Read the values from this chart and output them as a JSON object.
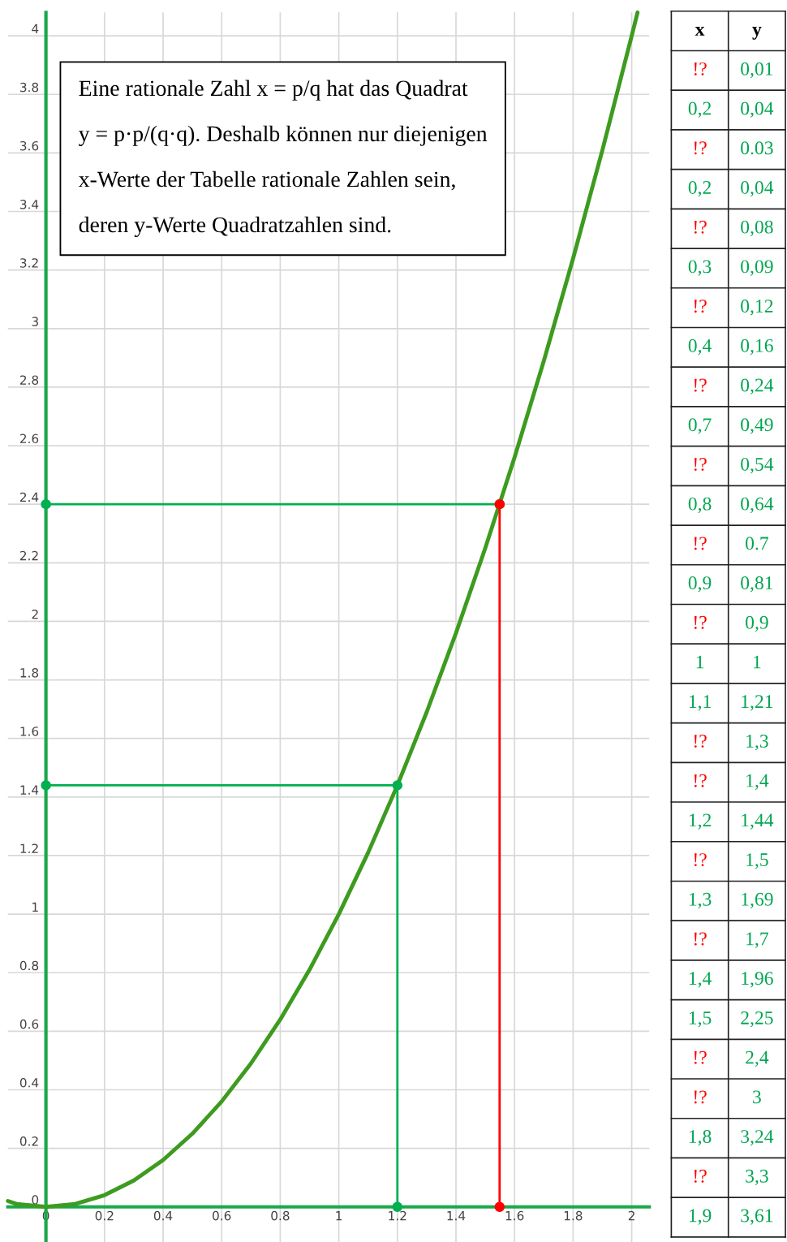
{
  "chart_data": [
    {
      "type": "line",
      "xlim": [
        -0.13,
        2.06
      ],
      "ylim": [
        -0.12,
        4.08
      ],
      "xticks": [
        0,
        0.2,
        0.4,
        0.6,
        0.8,
        1,
        1.2,
        1.4,
        1.6,
        1.8,
        2
      ],
      "yticks": [
        0,
        0.2,
        0.4,
        0.6,
        0.8,
        1,
        1.2,
        1.4,
        1.6,
        1.8,
        2,
        2.2,
        2.4,
        2.6,
        2.8,
        3,
        3.2,
        3.4,
        3.6,
        3.8,
        4
      ],
      "grid": true,
      "legend": false,
      "marker": "none",
      "line_style": "solid",
      "series": [
        {
          "color": "#3d9b1f",
          "x": [
            -0.13,
            -0.1,
            0,
            0.1,
            0.2,
            0.3,
            0.4,
            0.5,
            0.6,
            0.7,
            0.8,
            0.9,
            1,
            1.1,
            1.2,
            1.3,
            1.4,
            1.5,
            1.6,
            1.7,
            1.8,
            1.9,
            2.0,
            2.02
          ],
          "values": [
            0.02,
            0.01,
            0,
            0.01,
            0.04,
            0.09,
            0.16,
            0.25,
            0.36,
            0.49,
            0.64,
            0.81,
            1,
            1.21,
            1.44,
            1.69,
            1.96,
            2.25,
            2.56,
            2.89,
            3.24,
            3.61,
            4.0,
            4.08
          ]
        },
        {
          "color": "#00b050",
          "marker": "circle",
          "x": [
            1.2,
            1.2,
            0
          ],
          "values": [
            0,
            1.44,
            1.44
          ]
        },
        {
          "color": "#00b050",
          "marker": "circle",
          "x": [
            0,
            1.549
          ],
          "values": [
            2.4,
            2.4
          ]
        },
        {
          "color": "#ff0000",
          "marker": "circle",
          "x": [
            1.549,
            1.549
          ],
          "values": [
            2.4,
            0
          ]
        }
      ],
      "annotations": [
        "Eine rationale Zahl x = p/q hat das Quadrat\ny = p·p/(q·q). Deshalb können nur diejenigen\nx-Werte der Tabelle rationale Zahlen sein,\nderen y-Werte Quadratzahlen sind."
      ]
    },
    {
      "type": "other",
      "annotations": [
        "x",
        "y",
        "!?",
        "0,01",
        "0,2",
        "0,04",
        "!?",
        "0.03",
        "0,2",
        "0,04",
        "!?",
        "0,08",
        "0,3",
        "0,09",
        "!?",
        "0,12",
        "0,4",
        "0,16",
        "!?",
        "0,24",
        "0,7",
        "0,49",
        "!?",
        "0,54",
        "0,8",
        "0,64",
        "!?",
        "0.7",
        "0,9",
        "0,81",
        "!?",
        "0,9",
        "1",
        "1",
        "1,1",
        "1,21",
        "!?",
        "1,3",
        "!?",
        "1,4",
        "1,2",
        "1,44",
        "!?",
        "1,5",
        "1,3",
        "1,69",
        "!?",
        "1,7",
        "1,4",
        "1,96",
        "1,5",
        "2,25",
        "!?",
        "2,4",
        "!?",
        "3",
        "1,8",
        "3,24",
        "!?",
        "3,3",
        "1,9",
        "3,61"
      ],
      "colors": [
        "#000000",
        "#000000",
        "#ff0000",
        "#00a651",
        "#00a651",
        "#00a651",
        "#ff0000",
        "#00a651",
        "#00a651",
        "#00a651",
        "#ff0000",
        "#00a651",
        "#00a651",
        "#00a651",
        "#ff0000",
        "#00a651",
        "#00a651",
        "#00a651",
        "#ff0000",
        "#00a651",
        "#00a651",
        "#00a651",
        "#ff0000",
        "#00a651",
        "#00a651",
        "#00a651",
        "#ff0000",
        "#00a651",
        "#00a651",
        "#00a651",
        "#ff0000",
        "#00a651",
        "#00a651",
        "#00a651",
        "#00a651",
        "#00a651",
        "#ff0000",
        "#00a651",
        "#ff0000",
        "#00a651",
        "#00a651",
        "#00a651",
        "#ff0000",
        "#00a651",
        "#00a651",
        "#00a651",
        "#ff0000",
        "#00a651",
        "#00a651",
        "#00a651",
        "#00a651",
        "#00a651",
        "#ff0000",
        "#00a651",
        "#ff0000",
        "#00a651",
        "#00a651",
        "#00a651",
        "#ff0000",
        "#00a651",
        "#00a651",
        "#00a651"
      ]
    }
  ]
}
